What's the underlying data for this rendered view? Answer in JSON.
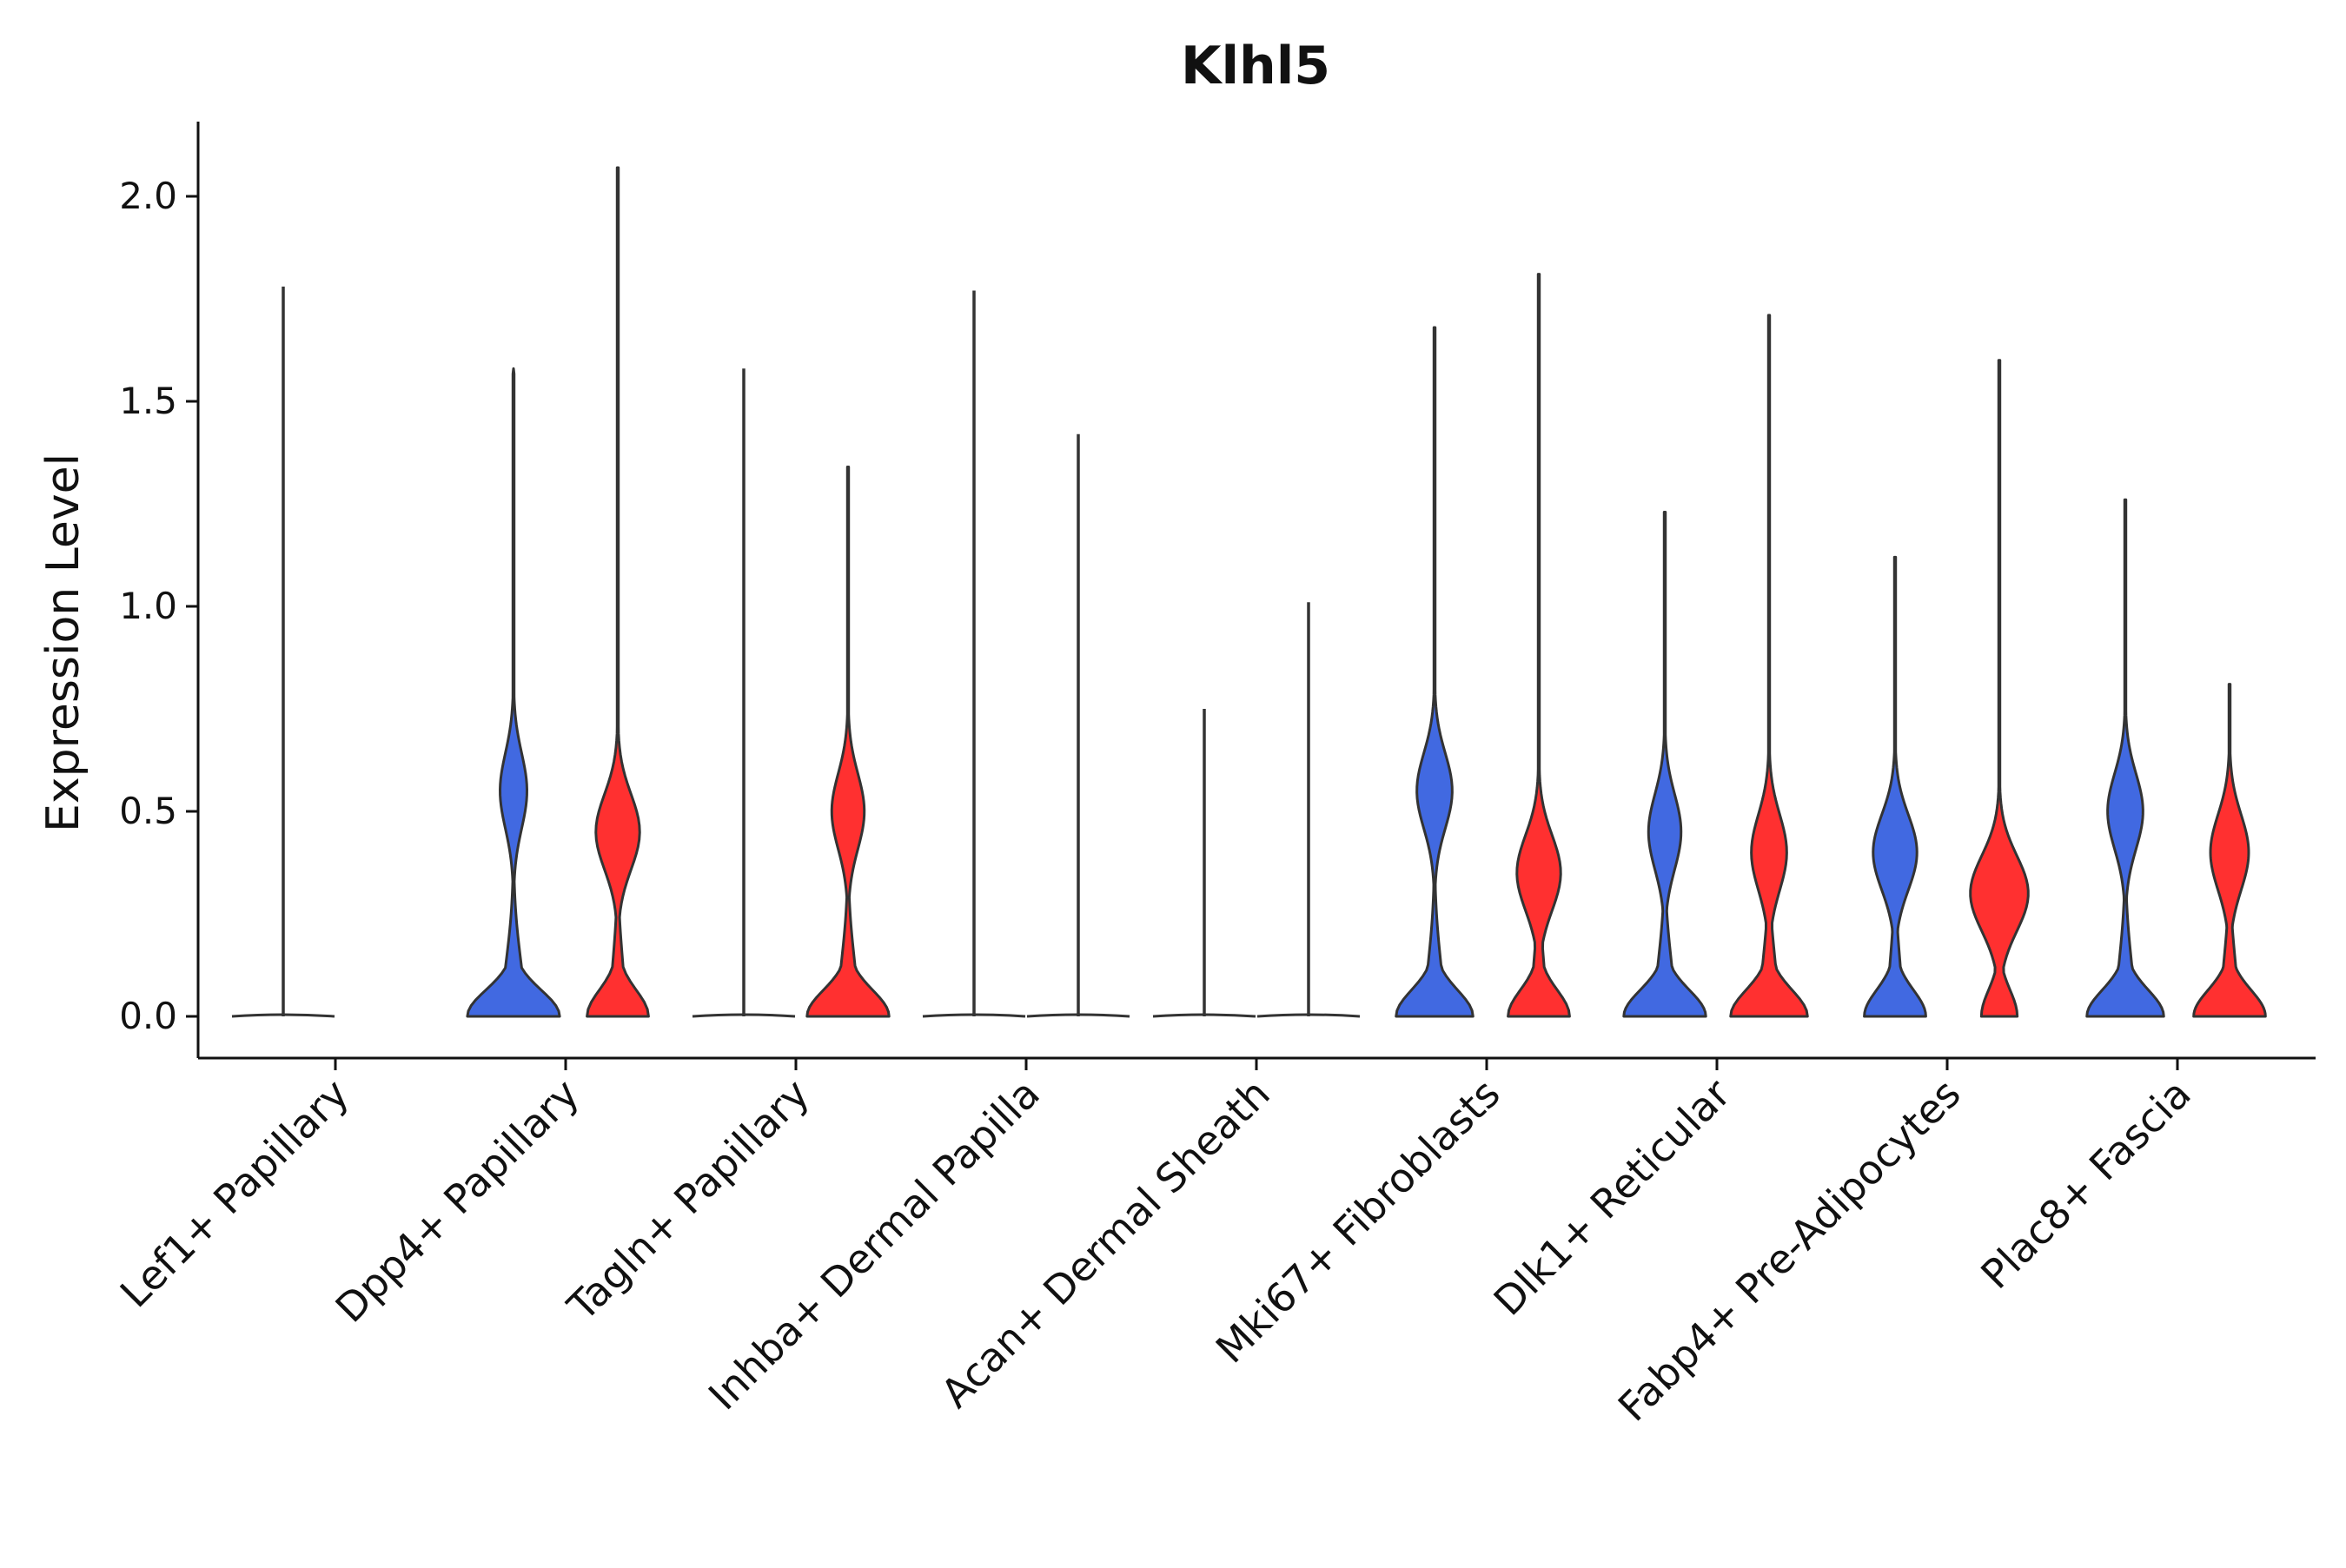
{
  "chart_data": {
    "type": "violin",
    "title": "Klhl5",
    "xlabel": "",
    "ylabel": "Expression Level",
    "ylim": [
      -0.1,
      2.17
    ],
    "yticks": [
      0.0,
      0.5,
      1.0,
      1.5,
      2.0
    ],
    "ytick_labels": [
      "0.0",
      "0.5",
      "1.0",
      "1.5",
      "2.0"
    ],
    "grid": false,
    "legend": "none",
    "categories": [
      "Lef1+ Papillary",
      "Dpp4+ Papillary",
      "Tagln+ Papillary",
      "Inhba+ Dermal Papilla",
      "Acan+ Dermal Sheath",
      "Mki67+ Fibroblasts",
      "Dlk1+ Reticular",
      "Fabp4+ Pre-Adipocytes",
      "Plac8+ Fascia"
    ],
    "series": [
      {
        "name": "group 1",
        "color": "#4169e1",
        "max_values": [
          1.78,
          1.58,
          1.58,
          1.77,
          0.75,
          1.68,
          1.23,
          1.12,
          1.26
        ],
        "density_modes": [
          [],
          [
            0.55
          ],
          [],
          [],
          [],
          [
            0.55
          ],
          [
            0.45
          ],
          [
            0.4
          ],
          [
            0.5
          ]
        ],
        "zero_mass": [
          1.0,
          0.9,
          1.0,
          1.0,
          1.0,
          0.75,
          0.8,
          0.6,
          0.75
        ]
      },
      {
        "name": "group 2",
        "color": "#ff3030",
        "max_values": [
          null,
          2.07,
          1.34,
          1.42,
          1.01,
          1.81,
          1.71,
          1.6,
          0.81
        ],
        "density_modes": [
          [],
          [
            0.45
          ],
          [
            0.5
          ],
          [],
          [],
          [
            0.35
          ],
          [
            0.4
          ],
          [
            0.3
          ],
          [
            0.4
          ]
        ],
        "zero_mass": [
          null,
          0.6,
          0.8,
          1.0,
          1.0,
          0.6,
          0.75,
          0.35,
          0.7
        ]
      }
    ]
  }
}
